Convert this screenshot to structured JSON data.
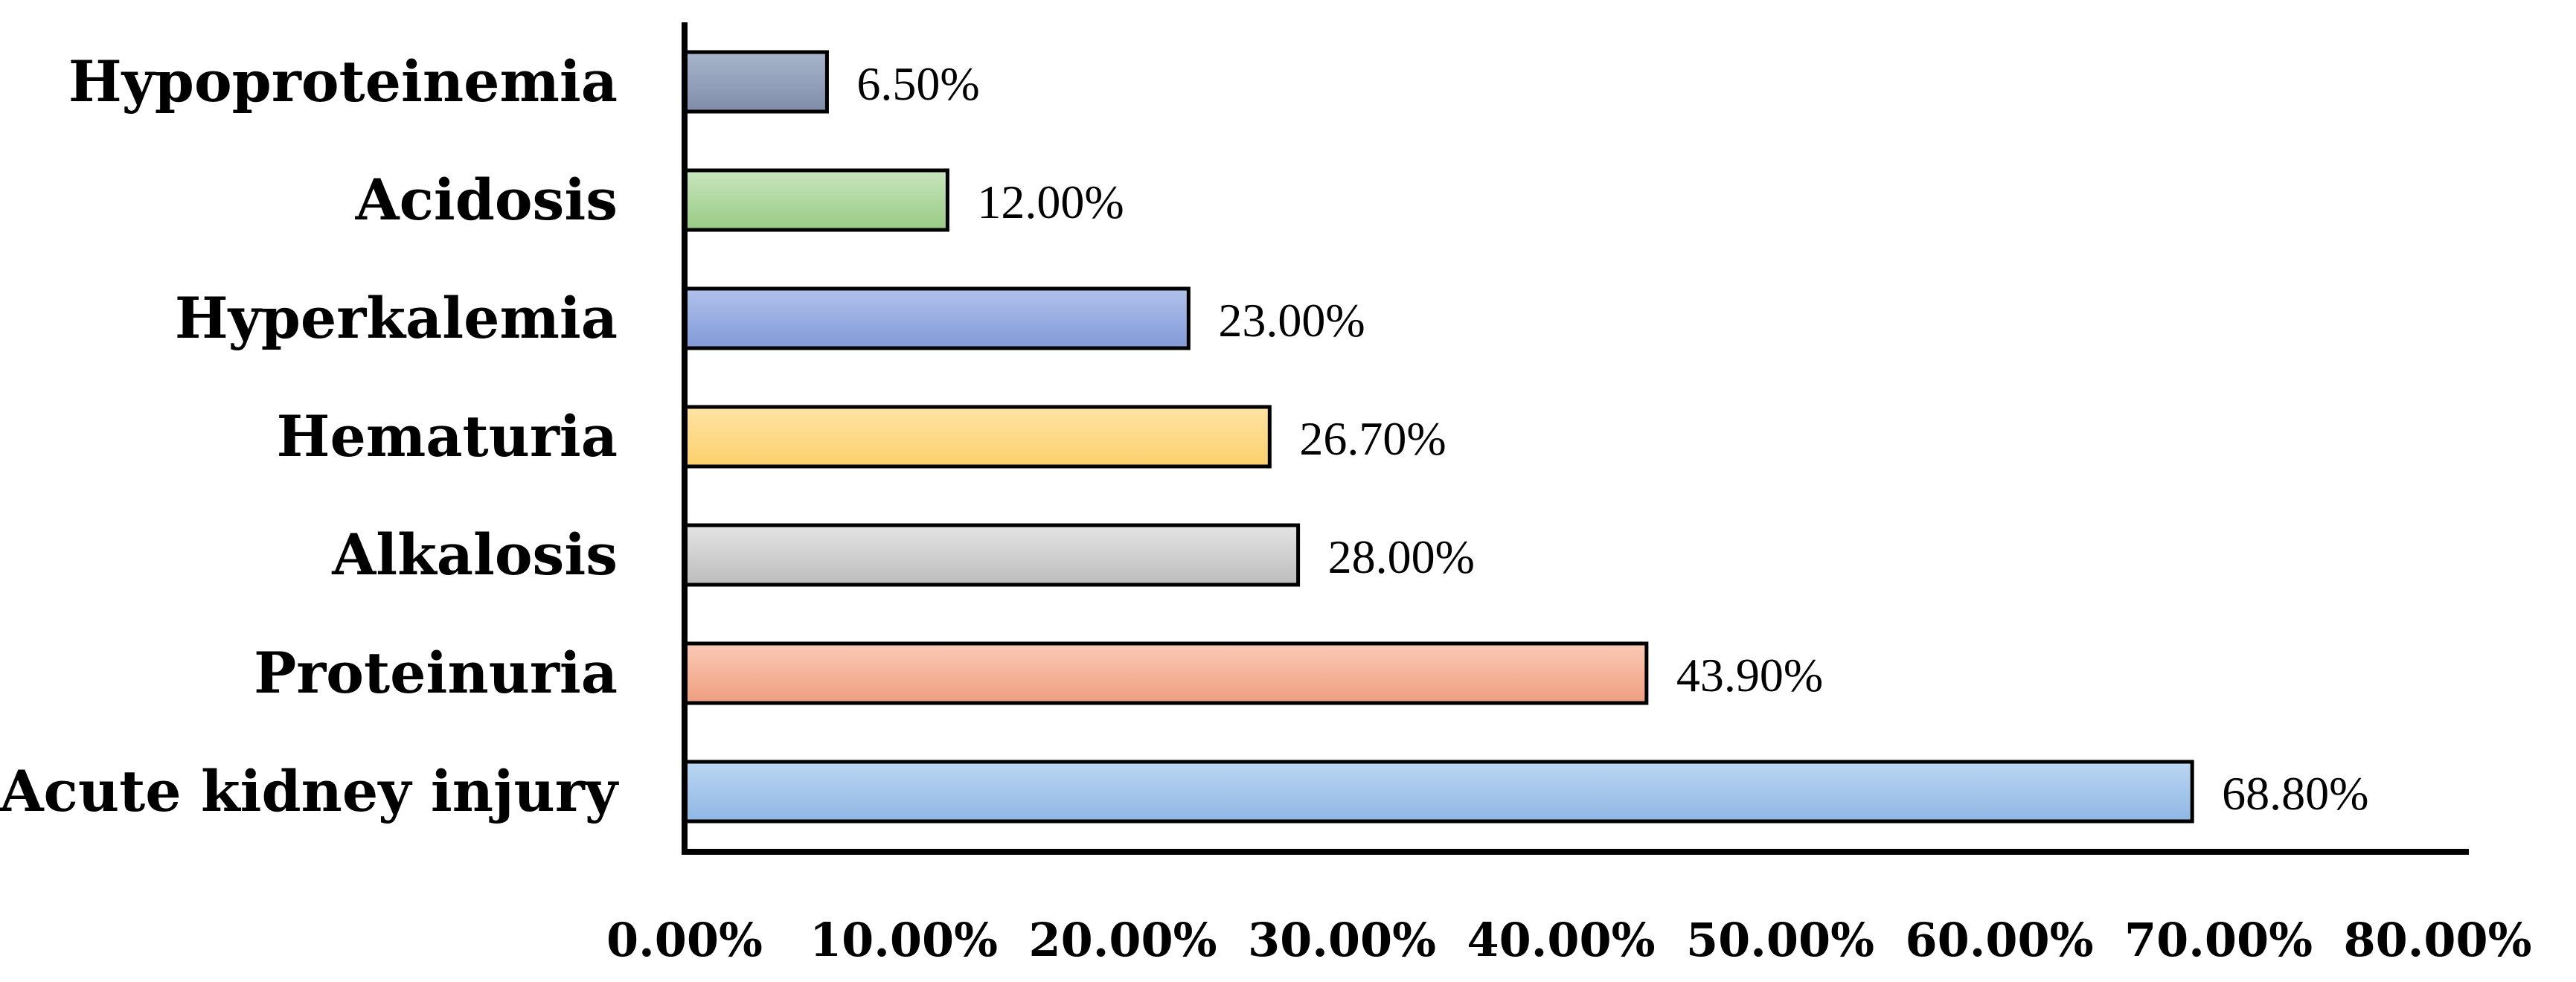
{
  "chart_data": {
    "type": "bar",
    "orientation": "horizontal",
    "categories": [
      "Acute kidney injury",
      "Proteinuria",
      "Alkalosis",
      "Hematuria",
      "Hyperkalemia",
      "Acidosis",
      "Hypoproteinemia"
    ],
    "values": [
      68.8,
      43.9,
      28.0,
      26.7,
      23.0,
      12.0,
      6.5
    ],
    "value_labels": [
      "68.80%",
      "43.90%",
      "28.00%",
      "26.70%",
      "23.00%",
      "12.00%",
      "6.50%"
    ],
    "bar_colors": [
      [
        "#bcd6f2",
        "#8fb6e3"
      ],
      [
        "#fbcab6",
        "#ef9e80"
      ],
      [
        "#e4e4e4",
        "#bcbcbc"
      ],
      [
        "#fee4a6",
        "#fccf6b"
      ],
      [
        "#b1c2ea",
        "#8199d8"
      ],
      [
        "#c9e5bd",
        "#98ca85"
      ],
      [
        "#a8b6cc",
        "#7e8ca9"
      ]
    ],
    "xlim": [
      0,
      80
    ],
    "xticks": [
      0,
      10,
      20,
      30,
      40,
      50,
      60,
      70,
      80
    ],
    "xtick_labels": [
      "0.00%",
      "10.00%",
      "20.00%",
      "30.00%",
      "40.00%",
      "50.00%",
      "60.00%",
      "70.00%",
      "80.00%"
    ],
    "title": "",
    "xlabel": "",
    "ylabel": "",
    "grid": false,
    "legend": false
  }
}
